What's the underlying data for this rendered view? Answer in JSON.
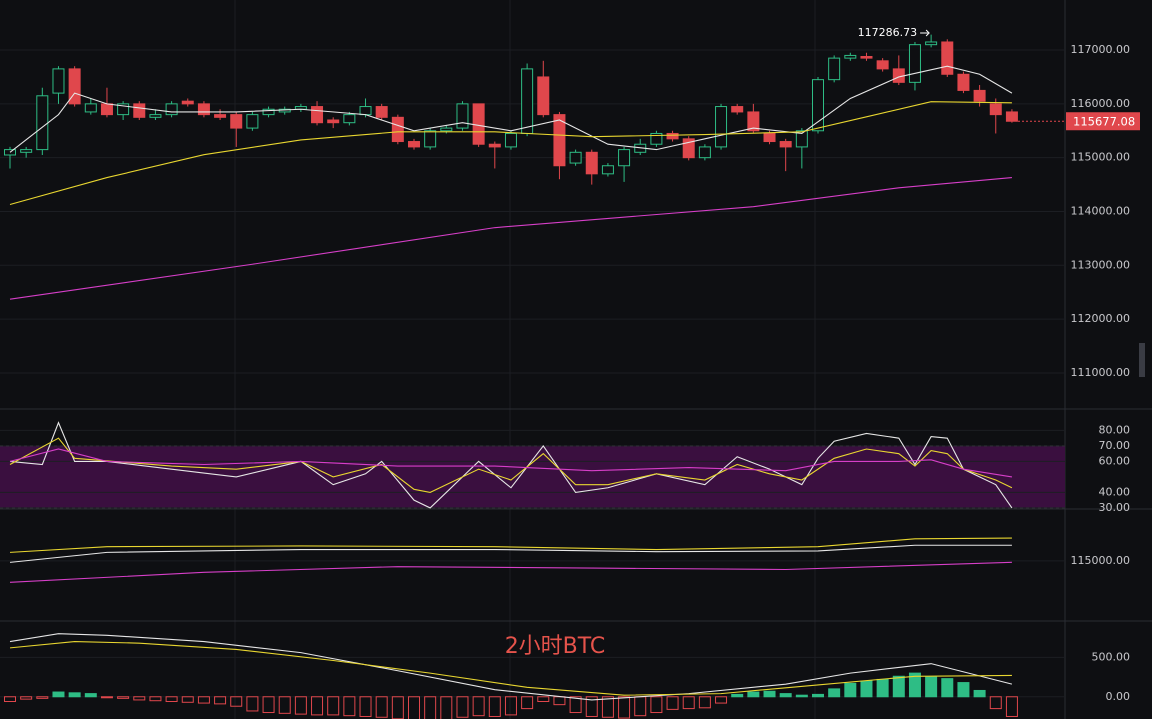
{
  "chart_data": [
    {
      "type": "candlestick",
      "up_color": "#2ebd85",
      "down_color": "#e0474c",
      "open": [
        115050,
        115100,
        115150,
        116200,
        116650,
        115850,
        116000,
        115800,
        116000,
        115750,
        115800,
        116050,
        116000,
        115800,
        115800,
        115550,
        115800,
        115850,
        115900,
        115950,
        115700,
        115650,
        115800,
        115950,
        115750,
        115300,
        115200,
        115500,
        115550,
        116000,
        115250,
        115200,
        115450,
        116500,
        115800,
        114900,
        115100,
        114700,
        114850,
        115100,
        115250,
        115450,
        115350,
        115000,
        115200,
        115950,
        115850,
        115450,
        115300,
        115200,
        115500,
        116450,
        116850,
        116880,
        116800,
        116650,
        116400,
        117100,
        117150,
        116550,
        116250,
        116000,
        115850
      ],
      "high": [
        115200,
        115200,
        116300,
        116700,
        116700,
        116100,
        116300,
        116050,
        116050,
        115900,
        116050,
        116100,
        116050,
        115900,
        115850,
        115850,
        115950,
        115950,
        116000,
        116050,
        115750,
        115850,
        116100,
        116000,
        115800,
        115350,
        115550,
        115600,
        116050,
        116000,
        115300,
        115500,
        116750,
        116800,
        115850,
        115150,
        115150,
        114900,
        115200,
        115350,
        115500,
        115500,
        115400,
        115250,
        116000,
        116000,
        116000,
        115500,
        115350,
        115550,
        116500,
        116900,
        116950,
        116950,
        116850,
        116900,
        117150,
        117286.73,
        117200,
        116600,
        116350,
        116100,
        115900
      ],
      "low": [
        114800,
        115000,
        115050,
        116000,
        115950,
        115800,
        115750,
        115700,
        115700,
        115700,
        115750,
        115950,
        115750,
        115700,
        115200,
        115500,
        115750,
        115800,
        115850,
        115600,
        115550,
        115600,
        115750,
        115700,
        115250,
        115150,
        115150,
        115450,
        115500,
        115200,
        114800,
        115150,
        115400,
        115750,
        114600,
        114850,
        114500,
        114650,
        114550,
        115050,
        115200,
        115300,
        114950,
        114950,
        115150,
        115800,
        115450,
        115250,
        114750,
        114800,
        115450,
        116400,
        116800,
        116800,
        116600,
        116350,
        116250,
        117050,
        116500,
        116200,
        115950,
        115450,
        115650
      ],
      "close": [
        115150,
        115150,
        116150,
        116650,
        116000,
        116000,
        115800,
        116000,
        115750,
        115800,
        116000,
        116000,
        115800,
        115750,
        115550,
        115800,
        115900,
        115900,
        115950,
        115650,
        115650,
        115800,
        115950,
        115750,
        115300,
        115200,
        115500,
        115550,
        116000,
        115250,
        115200,
        115450,
        116650,
        115800,
        114850,
        115100,
        114700,
        114850,
        115150,
        115250,
        115450,
        115350,
        115000,
        115200,
        115950,
        115850,
        115500,
        115300,
        115200,
        115500,
        116450,
        116850,
        116900,
        116850,
        116650,
        116400,
        117100,
        117150,
        116550,
        116250,
        116050,
        115800,
        115677.08
      ],
      "lines": [
        {
          "color": "#e6e6e6",
          "x": [
            0,
            3,
            4,
            6,
            10,
            14,
            18,
            22,
            25,
            28,
            31,
            34,
            37,
            40,
            43,
            46,
            49,
            52,
            55,
            58,
            60,
            62
          ],
          "values": [
            115100,
            115800,
            116200,
            116000,
            115850,
            115850,
            115900,
            115800,
            115500,
            115650,
            115500,
            115700,
            115250,
            115150,
            115350,
            115550,
            115450,
            116100,
            116500,
            116700,
            116550,
            116200
          ]
        },
        {
          "color": "#e8d630",
          "x": [
            0,
            6,
            12,
            18,
            24,
            30,
            36,
            43,
            49,
            53,
            57,
            62
          ],
          "values": [
            114130,
            114630,
            115055,
            115330,
            115480,
            115480,
            115390,
            115430,
            115480,
            115760,
            116040,
            116020
          ]
        },
        {
          "color": "#d63fc8",
          "x": [
            0,
            15,
            30,
            46,
            55,
            62
          ],
          "values": [
            112370,
            113020,
            113700,
            114090,
            114440,
            114630
          ]
        }
      ],
      "ylim": [
        110330,
        117930
      ],
      "yticks": [
        {
          "value": 111000,
          "label": "111000.00"
        },
        {
          "value": 112000,
          "label": "112000.00"
        },
        {
          "value": 113000,
          "label": "113000.00"
        },
        {
          "value": 114000,
          "label": "114000.00"
        },
        {
          "value": 115000,
          "label": "115000.00"
        },
        {
          "value": 116000,
          "label": "116000.00"
        },
        {
          "value": 117000,
          "label": "117000.00"
        }
      ],
      "last_price": {
        "value": 115677.08,
        "label": "115677.08"
      },
      "high_label": {
        "value": 117286.73,
        "label": "117286.73"
      }
    },
    {
      "type": "line",
      "band": [
        30,
        70
      ],
      "band_color": "#3a0f3f",
      "lines": [
        {
          "color": "#e6e6e6",
          "x": [
            0,
            2,
            3,
            4,
            6,
            10,
            14,
            18,
            20,
            22,
            23,
            25,
            26,
            29,
            31,
            33,
            35,
            37,
            40,
            43,
            45,
            47,
            49,
            50,
            51,
            53,
            55,
            56,
            57,
            58,
            59,
            61,
            62
          ],
          "values": [
            60,
            58,
            85,
            60,
            60,
            55,
            50,
            60,
            45,
            52,
            60,
            35,
            30,
            60,
            43,
            70,
            40,
            43,
            52,
            45,
            63,
            55,
            45,
            62,
            73,
            78,
            75,
            58,
            76,
            75,
            55,
            45,
            30
          ]
        },
        {
          "color": "#e8d630",
          "x": [
            0,
            3,
            4,
            10,
            14,
            18,
            20,
            23,
            25,
            26,
            29,
            31,
            33,
            35,
            37,
            40,
            43,
            45,
            47,
            49,
            51,
            53,
            55,
            56,
            57,
            58,
            59,
            61,
            62
          ],
          "values": [
            58,
            75,
            62,
            57,
            55,
            60,
            50,
            58,
            42,
            40,
            55,
            48,
            65,
            45,
            45,
            52,
            48,
            58,
            52,
            48,
            62,
            68,
            65,
            57,
            67,
            65,
            55,
            48,
            43
          ]
        },
        {
          "color": "#d63fc8",
          "x": [
            0,
            3,
            6,
            12,
            18,
            24,
            30,
            36,
            42,
            48,
            51,
            55,
            57,
            59,
            62
          ],
          "values": [
            60,
            68,
            60,
            58,
            60,
            57,
            57,
            54,
            56,
            54,
            60,
            60,
            61,
            55,
            50
          ]
        }
      ],
      "ylim": [
        29.3,
        93.8
      ],
      "yticks": [
        30,
        40,
        60,
        70,
        80
      ],
      "ytick_labels": [
        "30.00",
        "40.00",
        "60.00",
        "70.00",
        "80.00"
      ]
    },
    {
      "type": "line",
      "lines": [
        {
          "color": "#e8d630",
          "x": [
            0,
            6,
            18,
            30,
            40,
            50,
            56,
            62
          ],
          "values": [
            115600,
            116000,
            116050,
            116000,
            115800,
            116000,
            116550,
            116600
          ]
        },
        {
          "color": "#e6e6e6",
          "x": [
            0,
            6,
            18,
            30,
            40,
            50,
            56,
            62
          ],
          "values": [
            114900,
            115600,
            115800,
            115800,
            115650,
            115700,
            116100,
            116100
          ]
        },
        {
          "color": "#d63fc8",
          "x": [
            0,
            12,
            24,
            36,
            48,
            62
          ],
          "values": [
            113500,
            114200,
            114600,
            114500,
            114400,
            114900
          ]
        }
      ],
      "ylim": [
        110790,
        118640
      ],
      "yticks": [
        {
          "value": 115000,
          "label": "115000.00"
        }
      ]
    },
    {
      "type": "bar",
      "up_color": "#2ebd85",
      "down_color": "#e0474c",
      "values": [
        -60,
        -30,
        -20,
        60,
        50,
        40,
        -5,
        -20,
        -40,
        -50,
        -60,
        -70,
        -80,
        -90,
        -120,
        -180,
        -200,
        -210,
        -220,
        -230,
        -230,
        -240,
        -250,
        -260,
        -280,
        -290,
        -300,
        -290,
        -260,
        -240,
        -250,
        -230,
        -150,
        -60,
        -100,
        -200,
        -250,
        -260,
        -270,
        -240,
        -200,
        -160,
        -150,
        -140,
        -80,
        30,
        60,
        70,
        40,
        20,
        30,
        100,
        170,
        200,
        220,
        260,
        300,
        250,
        230,
        180,
        80,
        -150,
        -250
      ],
      "lines": [
        {
          "color": "#e6e6e6",
          "x": [
            0,
            3,
            6,
            12,
            18,
            24,
            30,
            36,
            42,
            48,
            52,
            57,
            62
          ],
          "values": [
            700,
            800,
            780,
            700,
            560,
            330,
            90,
            -40,
            40,
            160,
            300,
            420,
            160
          ]
        },
        {
          "color": "#e8d630",
          "x": [
            0,
            4,
            8,
            14,
            20,
            26,
            32,
            38,
            44,
            50,
            56,
            62
          ],
          "values": [
            620,
            700,
            680,
            600,
            460,
            300,
            120,
            20,
            40,
            150,
            260,
            270
          ]
        }
      ],
      "annotation": "2小时BTC",
      "ylim": [
        -282,
        961
      ],
      "yticks": [
        {
          "value": 0,
          "label": "0.00"
        },
        {
          "value": 500,
          "label": "500.00"
        }
      ]
    }
  ]
}
